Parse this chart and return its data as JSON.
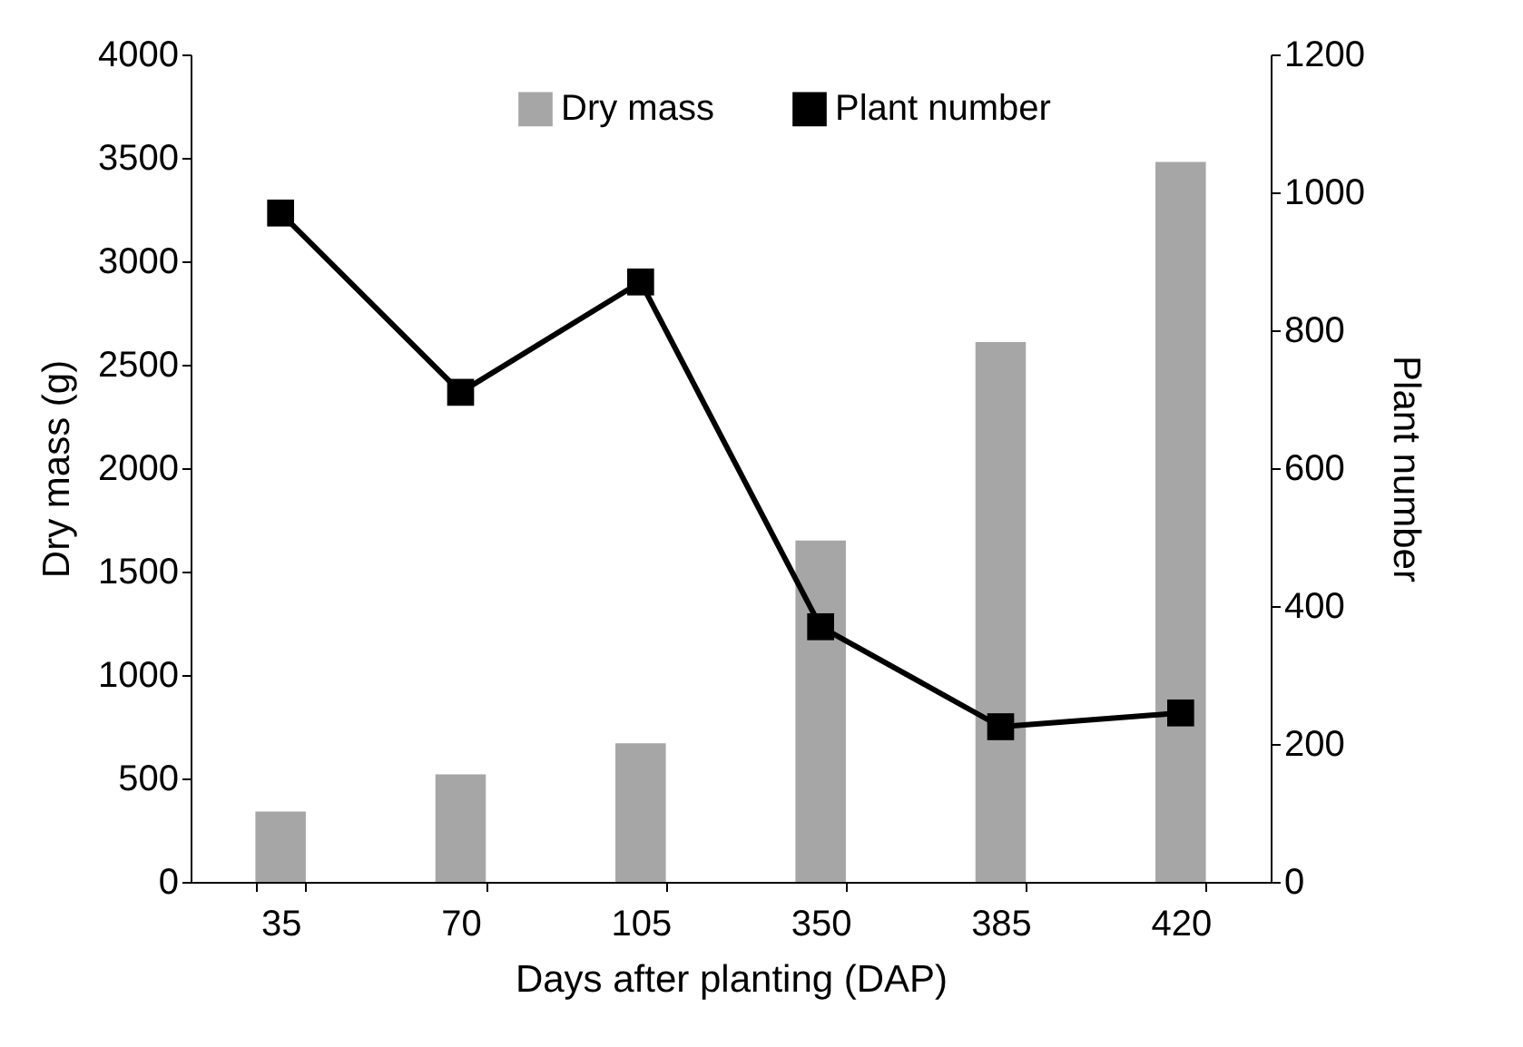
{
  "chart_data": {
    "type": "bar",
    "xlabel": "Days after planting (DAP)",
    "ylabel": "Dry mass (g)",
    "y2label": "Plant number",
    "categories": [
      "35",
      "70",
      "105",
      "350",
      "385",
      "420"
    ],
    "series": [
      {
        "name": "Dry mass",
        "color": "#a6a6a6",
        "values": [
          340,
          520,
          670,
          1650,
          2610,
          3480
        ]
      },
      {
        "name": "Plant number",
        "type": "line",
        "axis": "y2",
        "color": "#000000",
        "marker": "square",
        "line_style": "solid",
        "values": [
          970,
          710,
          870,
          370,
          225,
          245
        ]
      }
    ],
    "ylim": [
      0,
      4000
    ],
    "yticks": [
      0,
      500,
      1000,
      1500,
      2000,
      2500,
      3000,
      3500,
      4000
    ],
    "y2lim": [
      0,
      1200
    ],
    "y2ticks": [
      0,
      200,
      400,
      600,
      800,
      1000,
      1200
    ],
    "grid": false,
    "legend": "top"
  }
}
